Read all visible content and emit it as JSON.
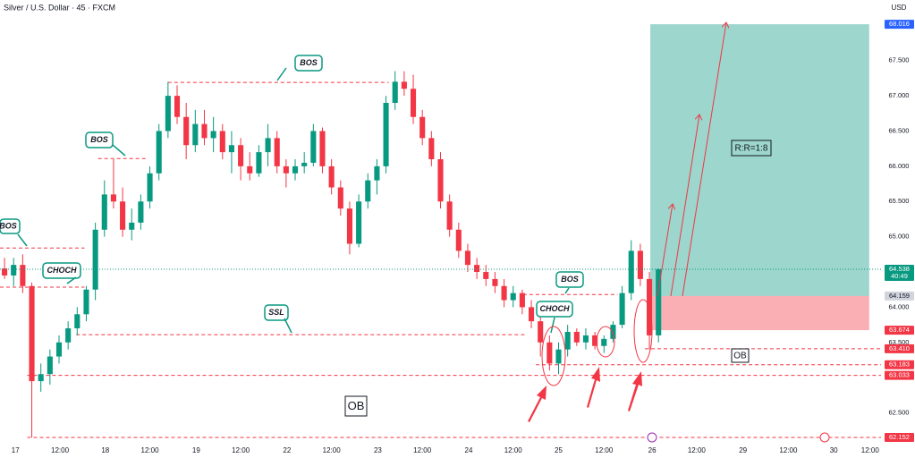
{
  "chart_data": {
    "type": "candlestick",
    "title": "Silver / U.S. Dollar · 45 · FXCM",
    "currency": "USD",
    "up_color": "#089981",
    "down_color": "#f23645",
    "candles": [
      [
        64.55,
        64.7,
        64.4,
        64.45
      ],
      [
        64.45,
        64.7,
        64.3,
        64.6
      ],
      [
        64.6,
        64.75,
        64.2,
        64.3
      ],
      [
        64.3,
        64.35,
        62.15,
        62.95
      ],
      [
        62.95,
        63.2,
        62.8,
        63.05
      ],
      [
        63.05,
        63.4,
        62.9,
        63.3
      ],
      [
        63.3,
        63.6,
        63.2,
        63.5
      ],
      [
        63.5,
        63.8,
        63.4,
        63.7
      ],
      [
        63.7,
        64.0,
        63.6,
        63.9
      ],
      [
        63.9,
        64.3,
        63.8,
        64.25
      ],
      [
        64.25,
        65.2,
        64.1,
        65.1
      ],
      [
        65.1,
        65.8,
        65.0,
        65.6
      ],
      [
        65.6,
        66.1,
        65.4,
        65.5
      ],
      [
        65.5,
        65.7,
        65.0,
        65.1
      ],
      [
        65.1,
        65.4,
        64.95,
        65.2
      ],
      [
        65.2,
        65.6,
        65.1,
        65.5
      ],
      [
        65.5,
        66.0,
        65.4,
        65.9
      ],
      [
        65.9,
        66.6,
        65.8,
        66.5
      ],
      [
        66.5,
        67.2,
        66.4,
        67.0
      ],
      [
        67.0,
        67.15,
        66.6,
        66.7
      ],
      [
        66.7,
        66.9,
        66.1,
        66.3
      ],
      [
        66.3,
        66.8,
        66.2,
        66.6
      ],
      [
        66.6,
        66.8,
        66.3,
        66.4
      ],
      [
        66.4,
        66.7,
        66.2,
        66.5
      ],
      [
        66.5,
        66.6,
        66.1,
        66.2
      ],
      [
        66.2,
        66.5,
        65.9,
        66.3
      ],
      [
        66.3,
        66.4,
        65.8,
        66.0
      ],
      [
        66.0,
        66.2,
        65.8,
        65.9
      ],
      [
        65.9,
        66.3,
        65.85,
        66.2
      ],
      [
        66.2,
        66.6,
        66.0,
        66.4
      ],
      [
        66.4,
        66.5,
        65.9,
        66.0
      ],
      [
        66.0,
        66.1,
        65.7,
        65.9
      ],
      [
        65.9,
        66.1,
        65.8,
        66.0
      ],
      [
        66.0,
        66.2,
        65.9,
        66.05
      ],
      [
        66.05,
        66.6,
        66.0,
        66.5
      ],
      [
        66.5,
        66.55,
        65.9,
        66.0
      ],
      [
        66.0,
        66.1,
        65.6,
        65.7
      ],
      [
        65.7,
        65.8,
        65.3,
        65.4
      ],
      [
        65.4,
        65.5,
        64.75,
        64.9
      ],
      [
        64.9,
        65.6,
        64.85,
        65.5
      ],
      [
        65.5,
        65.9,
        65.4,
        65.8
      ],
      [
        65.8,
        66.1,
        65.6,
        66.0
      ],
      [
        66.0,
        67.0,
        65.9,
        66.9
      ],
      [
        66.9,
        67.35,
        66.8,
        67.2
      ],
      [
        67.2,
        67.35,
        67.0,
        67.1
      ],
      [
        67.1,
        67.3,
        66.6,
        66.7
      ],
      [
        66.7,
        66.8,
        66.3,
        66.4
      ],
      [
        66.4,
        66.5,
        66.0,
        66.1
      ],
      [
        66.1,
        66.2,
        65.4,
        65.5
      ],
      [
        65.5,
        65.6,
        65.0,
        65.1
      ],
      [
        65.1,
        65.2,
        64.7,
        64.8
      ],
      [
        64.8,
        64.9,
        64.5,
        64.6
      ],
      [
        64.6,
        64.7,
        64.4,
        64.5
      ],
      [
        64.5,
        64.6,
        64.3,
        64.4
      ],
      [
        64.4,
        64.5,
        64.2,
        64.3
      ],
      [
        64.3,
        64.4,
        64.0,
        64.1
      ],
      [
        64.1,
        64.3,
        64.0,
        64.2
      ],
      [
        64.2,
        64.25,
        63.9,
        64.0
      ],
      [
        64.0,
        64.1,
        63.7,
        63.8
      ],
      [
        63.8,
        63.9,
        63.3,
        63.5
      ],
      [
        63.5,
        63.6,
        63.1,
        63.2
      ],
      [
        63.2,
        63.5,
        63.05,
        63.4
      ],
      [
        63.4,
        63.75,
        63.3,
        63.65
      ],
      [
        63.65,
        63.7,
        63.45,
        63.5
      ],
      [
        63.5,
        63.7,
        63.4,
        63.6
      ],
      [
        63.6,
        63.65,
        63.4,
        63.45
      ],
      [
        63.45,
        63.6,
        63.35,
        63.55
      ],
      [
        63.55,
        63.8,
        63.5,
        63.75
      ],
      [
        63.75,
        64.3,
        63.7,
        64.2
      ],
      [
        64.2,
        64.95,
        64.1,
        64.8
      ],
      [
        64.8,
        64.9,
        64.3,
        64.4
      ],
      [
        64.4,
        64.5,
        63.4,
        63.6
      ],
      [
        63.6,
        64.55,
        63.5,
        64.538
      ]
    ],
    "countdown": "40:49",
    "xlim": [
      0,
      97
    ],
    "xticks": [
      {
        "value": 1.7,
        "label": "17"
      },
      {
        "value": 6.6,
        "label": "12:00"
      },
      {
        "value": 11.6,
        "label": "18"
      },
      {
        "value": 16.5,
        "label": "12:00"
      },
      {
        "value": 21.6,
        "label": "19"
      },
      {
        "value": 26.5,
        "label": "12:00"
      },
      {
        "value": 31.6,
        "label": "22"
      },
      {
        "value": 36.5,
        "label": "12:00"
      },
      {
        "value": 41.6,
        "label": "23"
      },
      {
        "value": 46.5,
        "label": "12:00"
      },
      {
        "value": 51.6,
        "label": "24"
      },
      {
        "value": 56.5,
        "label": "12:00"
      },
      {
        "value": 61.5,
        "label": "25"
      },
      {
        "value": 66.5,
        "label": "12:00"
      },
      {
        "value": 71.8,
        "label": "26"
      },
      {
        "value": 76.7,
        "label": "12:00"
      },
      {
        "value": 81.8,
        "label": "29"
      },
      {
        "value": 86.8,
        "label": "12:00"
      },
      {
        "value": 91.8,
        "label": "30"
      },
      {
        "value": 95.8,
        "label": "12:00"
      }
    ],
    "ylim": [
      62.05,
      68.36
    ],
    "yticks": [
      {
        "value": 67.5,
        "label": "67.500"
      },
      {
        "value": 67,
        "label": "67.000"
      },
      {
        "value": 66.5,
        "label": "66.500"
      },
      {
        "value": 66,
        "label": "66.000"
      },
      {
        "value": 65.5,
        "label": "65.500"
      },
      {
        "value": 65,
        "label": "65.000"
      },
      {
        "value": 64,
        "label": "64.000"
      },
      {
        "value": 63.5,
        "label": "63.500"
      },
      {
        "value": 62.5,
        "label": "62.500"
      }
    ],
    "levels": [
      {
        "label": "BOS",
        "value": 64.84,
        "from": 0,
        "to": 9.3
      },
      {
        "label": "CHOCH",
        "value": 64.285,
        "from": 0,
        "to": 9.3
      },
      {
        "label": "BOS",
        "value": 66.11,
        "from": 10.8,
        "to": 16.3
      },
      {
        "label": "BOS",
        "value": 67.19,
        "from": 18.5,
        "to": 42.8
      },
      {
        "label": "SSL",
        "value": 63.61,
        "from": 8.4,
        "to": 58
      },
      {
        "label": "BOS",
        "value": 64.18,
        "from": 57.6,
        "to": 68
      },
      {
        "value": 63.41,
        "value_label": "63.410",
        "from": 71,
        "to": 97
      },
      {
        "value": 63.183,
        "from": 59,
        "to": 97
      },
      {
        "value": 63.033,
        "from": 3,
        "to": 97
      },
      {
        "value": 62.152,
        "from": 3,
        "to": 97
      }
    ],
    "position": {
      "entry": 64.159,
      "target": 68.016,
      "stop": 63.674,
      "from": 71.6,
      "to": 95.7,
      "label": "R:R=1:8"
    },
    "annotations": [
      "CHOCH",
      "OB",
      "OB"
    ]
  }
}
